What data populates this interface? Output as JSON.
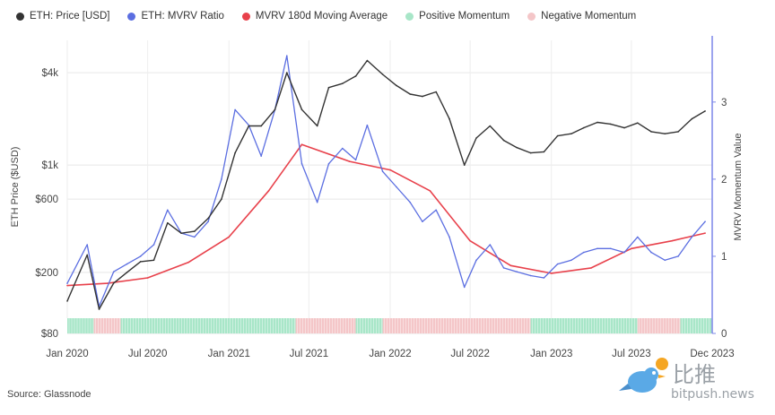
{
  "legend": {
    "price": "ETH: Price [USD]",
    "mvrv": "ETH: MVRV Ratio",
    "ma": "MVRV 180d Moving Average",
    "pos": "Positive Momentum",
    "neg": "Negative Momentum"
  },
  "source": "Source: Glassnode",
  "watermark": {
    "cn": "比推",
    "en": "bitpush.news"
  },
  "colors": {
    "price": "#333333",
    "mvrv": "#5b6ee1",
    "ma": "#e8414b",
    "pos": "#a8e6c8",
    "neg": "#f4c6c8",
    "axis_right": "#7b86e8"
  },
  "chart_data": {
    "type": "line",
    "xlabels": [
      "Jan 2020",
      "Jul 2020",
      "Jan 2021",
      "Jul 2021",
      "Jan 2022",
      "Jul 2022",
      "Jan 2023",
      "Jul 2023",
      "Dec 2023"
    ],
    "xrange": [
      "2020-01-01",
      "2023-12-31"
    ],
    "left_axis": {
      "label": "ETH Price ($USD)",
      "scale": "log",
      "ticks": [
        80,
        200,
        600,
        1000,
        4000
      ],
      "tick_labels": [
        "$80",
        "$200",
        "$600",
        "$1k",
        "$4k"
      ],
      "range": [
        80,
        6500
      ]
    },
    "right_axis": {
      "label": "MVRV Momentum Value",
      "ticks": [
        0,
        1,
        2,
        3
      ],
      "range": [
        0,
        3.8
      ]
    },
    "series": [
      {
        "name": "ETH: Price [USD]",
        "axis": "left",
        "x": [
          "2020-01-01",
          "2020-02-15",
          "2020-03-13",
          "2020-04-15",
          "2020-05-15",
          "2020-06-15",
          "2020-07-15",
          "2020-08-15",
          "2020-09-15",
          "2020-10-15",
          "2020-11-15",
          "2020-12-15",
          "2021-01-15",
          "2021-02-15",
          "2021-03-15",
          "2021-04-15",
          "2021-05-12",
          "2021-06-15",
          "2021-07-20",
          "2021-08-15",
          "2021-09-15",
          "2021-10-15",
          "2021-11-10",
          "2021-12-15",
          "2022-01-15",
          "2022-02-15",
          "2022-03-15",
          "2022-04-15",
          "2022-05-15",
          "2022-06-18",
          "2022-07-15",
          "2022-08-15",
          "2022-09-15",
          "2022-10-15",
          "2022-11-15",
          "2022-12-15",
          "2023-01-15",
          "2023-02-15",
          "2023-03-15",
          "2023-04-15",
          "2023-05-15",
          "2023-06-15",
          "2023-07-15",
          "2023-08-15",
          "2023-09-15",
          "2023-10-15",
          "2023-11-15",
          "2023-12-15"
        ],
        "values": [
          130,
          260,
          115,
          170,
          200,
          235,
          240,
          420,
          360,
          370,
          450,
          600,
          1200,
          1800,
          1800,
          2300,
          4000,
          2300,
          1800,
          3200,
          3400,
          3800,
          4800,
          3900,
          3300,
          2900,
          2800,
          3000,
          2000,
          1000,
          1500,
          1800,
          1450,
          1300,
          1200,
          1220,
          1550,
          1600,
          1750,
          1900,
          1850,
          1750,
          1880,
          1650,
          1600,
          1650,
          2000,
          2250
        ]
      },
      {
        "name": "ETH: MVRV Ratio",
        "axis": "right",
        "x": [
          "2020-01-01",
          "2020-02-15",
          "2020-03-13",
          "2020-04-15",
          "2020-05-15",
          "2020-06-15",
          "2020-07-15",
          "2020-08-15",
          "2020-09-15",
          "2020-10-15",
          "2020-11-15",
          "2020-12-15",
          "2021-01-15",
          "2021-02-15",
          "2021-03-15",
          "2021-04-15",
          "2021-05-12",
          "2021-06-15",
          "2021-07-20",
          "2021-08-15",
          "2021-09-15",
          "2021-10-15",
          "2021-11-10",
          "2021-12-15",
          "2022-01-15",
          "2022-02-15",
          "2022-03-15",
          "2022-04-15",
          "2022-05-15",
          "2022-06-18",
          "2022-07-15",
          "2022-08-15",
          "2022-09-15",
          "2022-10-15",
          "2022-11-15",
          "2022-12-15",
          "2023-01-15",
          "2023-02-15",
          "2023-03-15",
          "2023-04-15",
          "2023-05-15",
          "2023-06-15",
          "2023-07-15",
          "2023-08-15",
          "2023-09-15",
          "2023-10-15",
          "2023-11-15",
          "2023-12-15"
        ],
        "values": [
          0.65,
          1.15,
          0.35,
          0.8,
          0.9,
          1.0,
          1.15,
          1.6,
          1.3,
          1.25,
          1.45,
          2.0,
          2.9,
          2.7,
          2.3,
          2.9,
          3.6,
          2.2,
          1.7,
          2.2,
          2.4,
          2.25,
          2.7,
          2.1,
          1.9,
          1.7,
          1.45,
          1.6,
          1.25,
          0.6,
          0.95,
          1.15,
          0.85,
          0.8,
          0.75,
          0.72,
          0.9,
          0.95,
          1.05,
          1.1,
          1.1,
          1.05,
          1.25,
          1.05,
          0.95,
          1.0,
          1.25,
          1.45
        ]
      },
      {
        "name": "MVRV 180d Moving Average",
        "axis": "right",
        "x": [
          "2020-01-01",
          "2020-04-01",
          "2020-07-01",
          "2020-10-01",
          "2021-01-01",
          "2021-04-01",
          "2021-06-15",
          "2021-10-01",
          "2022-01-01",
          "2022-04-01",
          "2022-07-01",
          "2022-10-01",
          "2023-01-01",
          "2023-04-01",
          "2023-07-01",
          "2023-10-01",
          "2023-12-15"
        ],
        "values": [
          0.62,
          0.65,
          0.72,
          0.92,
          1.25,
          1.85,
          2.45,
          2.23,
          2.12,
          1.85,
          1.2,
          0.88,
          0.78,
          0.85,
          1.1,
          1.2,
          1.3
        ]
      }
    ],
    "momentum": [
      {
        "start": "2020-01-01",
        "end": "2020-03-01",
        "state": "positive"
      },
      {
        "start": "2020-03-01",
        "end": "2020-05-01",
        "state": "negative"
      },
      {
        "start": "2020-05-01",
        "end": "2021-06-01",
        "state": "positive"
      },
      {
        "start": "2021-06-01",
        "end": "2021-10-15",
        "state": "negative"
      },
      {
        "start": "2021-10-15",
        "end": "2021-12-15",
        "state": "positive"
      },
      {
        "start": "2021-12-15",
        "end": "2022-11-15",
        "state": "negative"
      },
      {
        "start": "2022-11-15",
        "end": "2023-07-15",
        "state": "positive"
      },
      {
        "start": "2023-07-15",
        "end": "2023-10-20",
        "state": "negative"
      },
      {
        "start": "2023-10-20",
        "end": "2023-12-31",
        "state": "positive"
      }
    ],
    "grid": true,
    "legend_position": "top"
  }
}
